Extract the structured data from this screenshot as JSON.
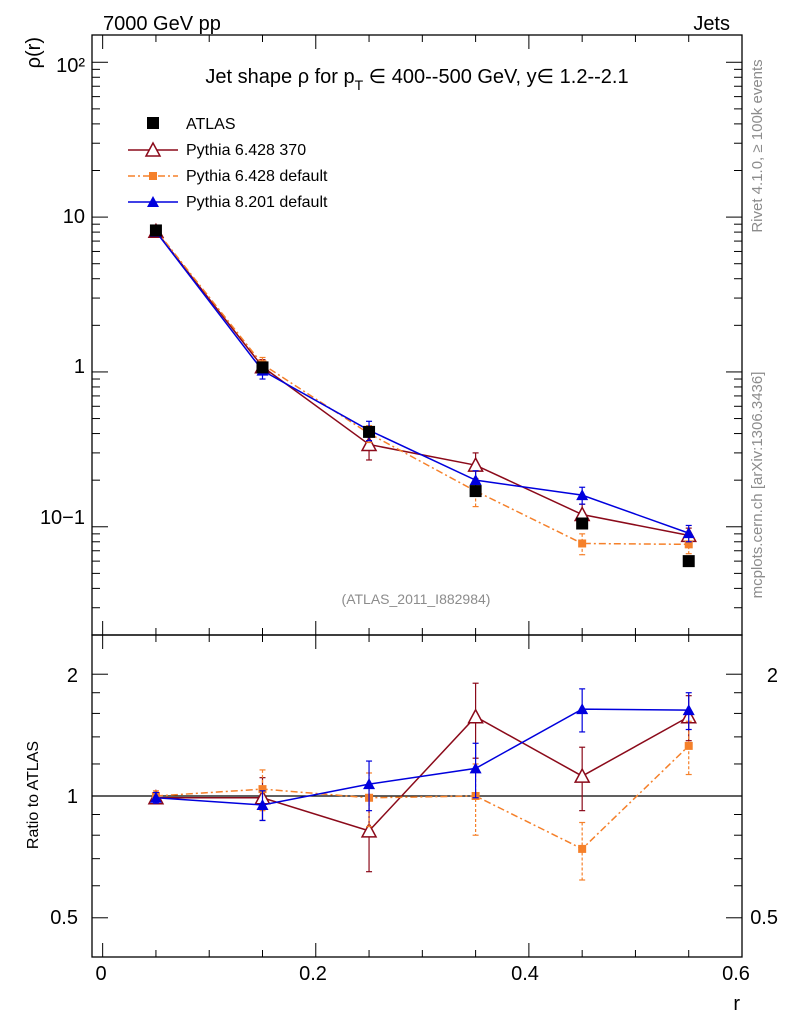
{
  "header": {
    "left": "7000 GeV pp",
    "right": "Jets"
  },
  "side_labels": {
    "top": "Rivet 4.1.0, ≥ 100k events",
    "bottom": "mcplots.cern.ch [arXiv:1306.3436]"
  },
  "chart_data": [
    {
      "type": "line",
      "title": "Jet shape ρ for p_T ∈ 400--500 GeV, y∈ 1.2--2.1",
      "title_parts": {
        "pre": "Jet shape ρ for p",
        "sub": "T",
        "post": " ∈ 400--500 GeV, y∈ 1.2--2.1"
      },
      "ylabel": "ρ(r)",
      "xlabel": "r",
      "yscale": "log",
      "xlim": [
        -0.01,
        0.6
      ],
      "ylim": [
        0.02,
        150
      ],
      "ytick_labels": [
        "10−1",
        "1",
        "10",
        "10²"
      ],
      "ytick_values": [
        0.1,
        1,
        10,
        100
      ],
      "watermark": "(ATLAS_2011_I882984)",
      "x": [
        0.05,
        0.15,
        0.25,
        0.35,
        0.45,
        0.55
      ],
      "series": [
        {
          "name": "ATLAS",
          "color": "#000000",
          "marker": "square",
          "values": [
            8.2,
            1.07,
            0.41,
            0.17,
            0.105,
            0.06
          ],
          "err": [
            0.25,
            0.05,
            0.02,
            0.01,
            0.006,
            0.004
          ]
        },
        {
          "name": "Pythia 6.428 370",
          "color": "#8b0a1a",
          "marker": "open-triangle",
          "values": [
            8.1,
            1.08,
            0.34,
            0.25,
            0.12,
            0.088
          ],
          "err": [
            0.3,
            0.12,
            0.07,
            0.05,
            0.02,
            0.01
          ]
        },
        {
          "name": "Pythia 6.428 default",
          "color": "#f5802a",
          "marker": "small-square",
          "dash": "7,3,2,3",
          "values": [
            8.25,
            1.12,
            0.4,
            0.17,
            0.078,
            0.077
          ],
          "err": [
            0.25,
            0.12,
            0.05,
            0.035,
            0.012,
            0.01
          ]
        },
        {
          "name": "Pythia 8.201 default",
          "color": "#0000dd",
          "marker": "triangle",
          "values": [
            8.05,
            1.02,
            0.42,
            0.2,
            0.16,
            0.091
          ],
          "err": [
            0.25,
            0.12,
            0.06,
            0.03,
            0.02,
            0.011
          ]
        }
      ]
    },
    {
      "type": "line",
      "ylabel": "Ratio to ATLAS",
      "xlabel": "r",
      "yscale": "log",
      "xlim": [
        -0.01,
        0.6
      ],
      "ylim": [
        0.4,
        2.5
      ],
      "reference_line": 1,
      "xtick_labels": [
        "0",
        "0.2",
        "0.4",
        "0.6"
      ],
      "xtick_values": [
        0,
        0.2,
        0.4,
        0.6
      ],
      "ytick_labels": [
        "0.5",
        "1",
        "2"
      ],
      "ytick_values": [
        0.5,
        1,
        2
      ],
      "x": [
        0.05,
        0.15,
        0.25,
        0.35,
        0.45,
        0.55
      ],
      "series": [
        {
          "name": "Pythia 6.428 370",
          "color": "#8b0a1a",
          "marker": "open-triangle",
          "values": [
            0.99,
            0.99,
            0.82,
            1.57,
            1.12,
            1.57
          ],
          "err": [
            0.03,
            0.12,
            0.17,
            0.33,
            0.2,
            0.2
          ]
        },
        {
          "name": "Pythia 6.428 default",
          "color": "#f5802a",
          "marker": "small-square",
          "dash": "7,3,2,3",
          "values": [
            1.0,
            1.04,
            0.99,
            1.0,
            0.74,
            1.33
          ],
          "err": [
            0.03,
            0.12,
            0.15,
            0.2,
            0.12,
            0.2
          ]
        },
        {
          "name": "Pythia 8.201 default",
          "color": "#0000dd",
          "marker": "triangle",
          "values": [
            0.99,
            0.95,
            1.07,
            1.17,
            1.64,
            1.63
          ],
          "err": [
            0.03,
            0.08,
            0.15,
            0.18,
            0.2,
            0.17
          ]
        }
      ]
    }
  ]
}
